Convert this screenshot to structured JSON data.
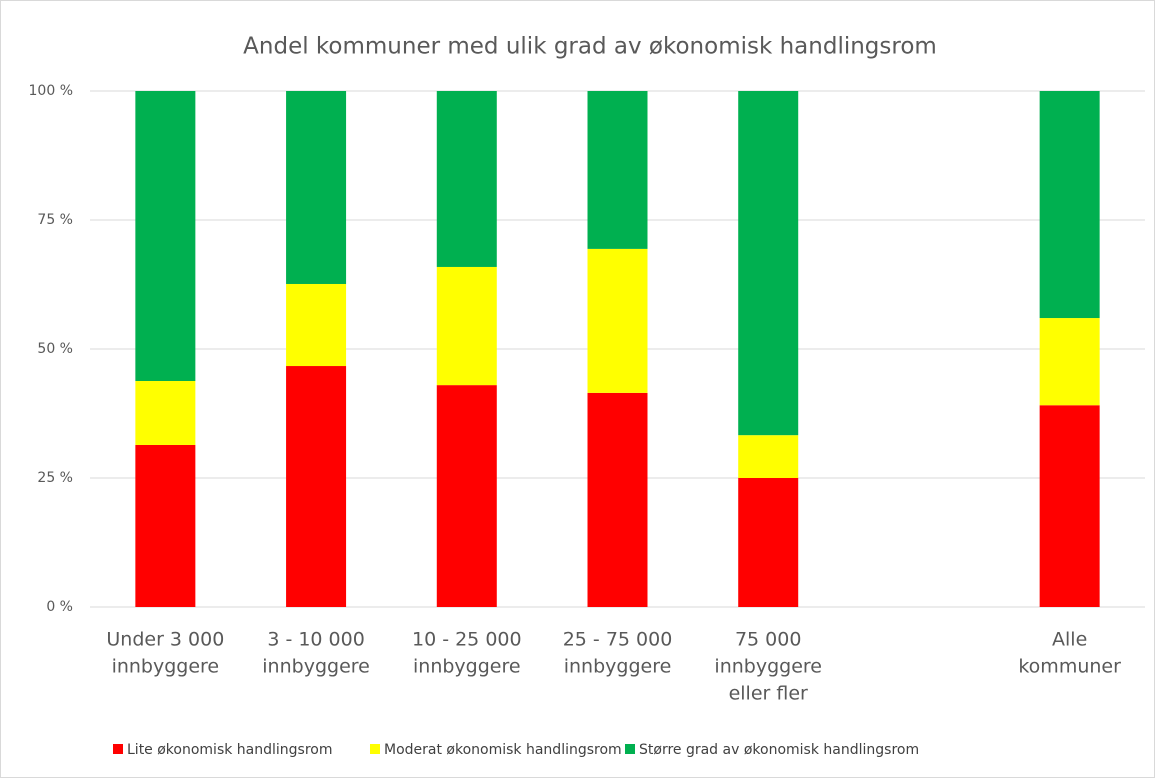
{
  "chart_data": {
    "type": "stacked_bar",
    "title": "Andel kommuner med ulik grad av økonomisk handlingsrom",
    "categories": [
      [
        "Under 3 000",
        "innbyggere"
      ],
      [
        "3 - 10 000",
        "innbyggere"
      ],
      [
        "10 - 25 000",
        "innbyggere"
      ],
      [
        "25 - 75 000",
        "innbyggere"
      ],
      [
        "75 000",
        "innbyggere",
        "eller fler"
      ],
      null,
      [
        "Alle",
        "kommuner"
      ]
    ],
    "series": [
      {
        "name": "Lite økonomisk handlingsrom",
        "color": "#ff0000",
        "values": [
          31.4,
          46.7,
          43.0,
          41.5,
          25.0,
          null,
          39.1
        ]
      },
      {
        "name": "Moderat økonomisk handlingsrom",
        "color": "#ffff00",
        "values": [
          12.4,
          15.9,
          22.9,
          27.9,
          8.3,
          null,
          16.9
        ]
      },
      {
        "name": "Større grad av økonomisk handlingsrom",
        "color": "#00b050",
        "values": [
          56.2,
          37.4,
          34.1,
          30.6,
          66.7,
          null,
          44.0
        ]
      }
    ],
    "ylim": [
      0,
      100
    ],
    "yticks": [
      {
        "value": 0,
        "label": "0 %"
      },
      {
        "value": 25,
        "label": "25 %"
      },
      {
        "value": 50,
        "label": "50 %"
      },
      {
        "value": 75,
        "label": "75 %"
      },
      {
        "value": 100,
        "label": "100 %"
      }
    ],
    "grid": true
  }
}
